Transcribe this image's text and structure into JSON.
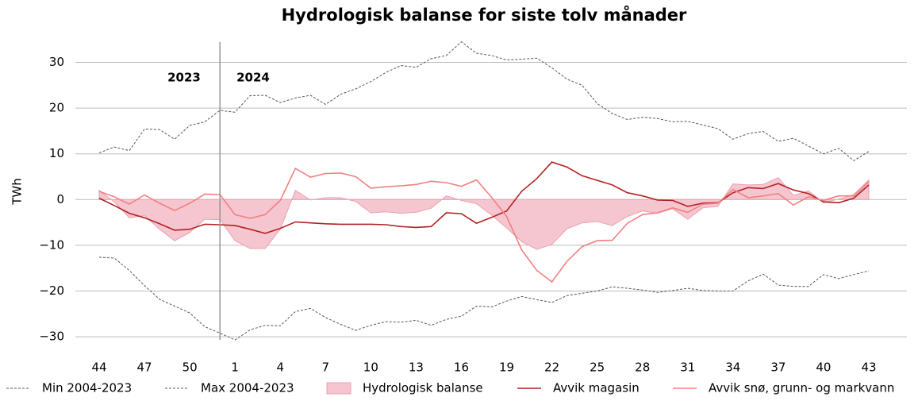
{
  "chart_data": {
    "type": "line",
    "title": "Hydrologisk balanse for siste tolv månader",
    "y_label": "TWh",
    "annotations": [
      "2023",
      "2024"
    ],
    "categories": [
      44,
      null,
      null,
      47,
      null,
      null,
      50,
      null,
      null,
      1,
      null,
      null,
      4,
      null,
      null,
      7,
      null,
      null,
      10,
      null,
      null,
      13,
      null,
      null,
      16,
      null,
      null,
      19,
      null,
      null,
      22,
      null,
      null,
      25,
      null,
      null,
      28,
      null,
      null,
      31,
      null,
      null,
      34,
      null,
      null,
      37,
      null,
      null,
      40,
      null,
      null,
      43
    ],
    "ylim": [
      -31.2,
      34.6
    ],
    "yticks": [
      {
        "value": -30,
        "label": "−30"
      },
      {
        "value": -20,
        "label": "−20"
      },
      {
        "value": -10,
        "label": "−10"
      },
      0,
      10,
      20,
      30
    ],
    "grid": true,
    "legend": "bottom",
    "series": [
      {
        "name": "Min 2004-2023",
        "color": "#555555",
        "dashed": true,
        "values": [
          -12.6,
          -12.8,
          -15.5,
          -18.8,
          -21.8,
          -23.3,
          -24.8,
          -27.8,
          -29.2,
          -30.7,
          -28.5,
          -27.5,
          -27.6,
          -24.5,
          -23.8,
          -25.8,
          -27.3,
          -28.6,
          -27.5,
          -26.7,
          -26.8,
          -26.4,
          -27.5,
          -26.2,
          -25.5,
          -23.3,
          -23.5,
          -22.2,
          -21.2,
          -21.9,
          -22.5,
          -21,
          -20.5,
          -20,
          -19.1,
          -19.4,
          -19.8,
          -20.3,
          -19.9,
          -19.4,
          -19.9,
          -20,
          -20,
          -17.8,
          -16.3,
          -18.7,
          -19,
          -19,
          -16.4,
          -17.3,
          -16.4,
          -15.6
        ]
      },
      {
        "name": "Max 2004-2023",
        "color": "#555555",
        "dashed": true,
        "values": [
          10.2,
          11.5,
          10.7,
          15.4,
          15.3,
          13.2,
          16.2,
          17,
          19.5,
          19.1,
          22.7,
          22.8,
          21.2,
          22.2,
          22.8,
          20.8,
          23,
          24.2,
          25.8,
          27.8,
          29.3,
          28.9,
          30.8,
          31.5,
          34.5,
          32,
          31.5,
          30.5,
          30.7,
          30.9,
          28.8,
          26.3,
          25,
          21,
          18.8,
          17.5,
          18,
          17.7,
          17,
          17.1,
          16.3,
          15.5,
          13.2,
          14.4,
          14.9,
          12.7,
          13.4,
          11.7,
          10,
          11.2,
          8.5,
          10.5
        ]
      },
      {
        "name": "Hydrologisk balanse",
        "color": "#f5c6d0",
        "area": true,
        "values": [
          2,
          -0.5,
          -4,
          -3.5,
          -6.5,
          -9,
          -7.2,
          -4.3,
          -4.4,
          -9,
          -10.7,
          -10.7,
          -6.5,
          2,
          -0.1,
          0.4,
          0.4,
          -0.4,
          -2.9,
          -2.7,
          -3,
          -2.8,
          -1.9,
          0.8,
          -0.2,
          -0.9,
          -3.4,
          -6.2,
          -9.2,
          -10.9,
          -9.8,
          -6.4,
          -5.1,
          -4.8,
          -5.7,
          -3.7,
          -2.5,
          -3,
          -2,
          -4.3,
          -1.8,
          -1.5,
          3.4,
          3.2,
          3.3,
          4.8,
          0.9,
          1.9,
          -0.7,
          0.1,
          1.1,
          4.3
        ]
      },
      {
        "name": "Avvik magasin",
        "color": "#b22222",
        "values": [
          0.3,
          -1.3,
          -3,
          -4,
          -5.3,
          -6.7,
          -6.5,
          -5.4,
          -5.5,
          -5.7,
          -6.5,
          -7.4,
          -6.3,
          -4.9,
          -5.1,
          -5.3,
          -5.4,
          -5.4,
          -5.4,
          -5.5,
          -5.9,
          -6.1,
          -5.9,
          -2.9,
          -3.1,
          -5.2,
          -3.9,
          -2.5,
          1.8,
          4.6,
          8.2,
          7.1,
          5.2,
          4.2,
          3.2,
          1.5,
          0.8,
          -0.1,
          -0.2,
          -1.5,
          -0.8,
          -0.7,
          1.5,
          2.6,
          2.4,
          3.5,
          2.1,
          1.3,
          -0.5,
          -0.7,
          0.3,
          3.2
        ]
      },
      {
        "name": "Avvik snø, grunn- og markvann",
        "color": "#f08080",
        "values": [
          1.8,
          0.6,
          -1,
          1,
          -0.8,
          -2.4,
          -0.8,
          1.2,
          1.1,
          -3.3,
          -4.1,
          -3.3,
          -0.2,
          6.8,
          4.9,
          5.7,
          5.8,
          5,
          2.5,
          2.8,
          3,
          3.3,
          4,
          3.7,
          2.9,
          4.3,
          0.5,
          -3.7,
          -11,
          -15.5,
          -18,
          -13.5,
          -10.3,
          -9,
          -8.9,
          -5.2,
          -3.3,
          -2.9,
          -1.8,
          -2.8,
          -1,
          -0.8,
          2.2,
          0.4,
          0.8,
          1.3,
          -1.2,
          0.6,
          -0.2,
          0.8,
          0.8,
          3.9
        ]
      }
    ]
  }
}
